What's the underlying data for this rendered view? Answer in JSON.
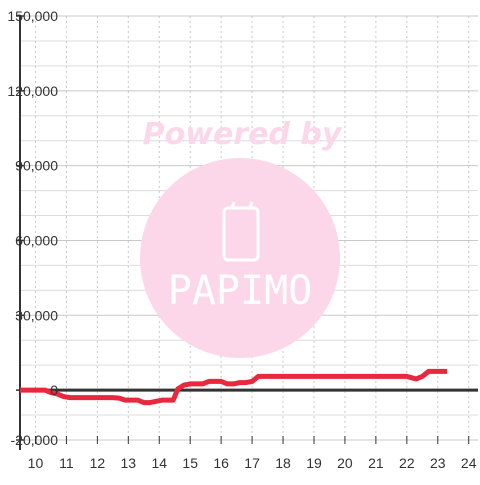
{
  "watermark": {
    "caption": "Powered by",
    "brand": "PAPIMO",
    "color": "#fcd7ea",
    "icon": "phone-icon"
  },
  "chart_data": {
    "type": "line",
    "title": "",
    "xlabel": "",
    "ylabel": "",
    "xlim": [
      9.5,
      24.3
    ],
    "ylim": [
      -20000,
      150000
    ],
    "x_ticks": [
      10,
      11,
      12,
      13,
      14,
      15,
      16,
      17,
      18,
      19,
      20,
      21,
      22,
      23,
      24
    ],
    "x_tick_labels": [
      "10",
      "11",
      "12",
      "13",
      "14",
      "15",
      "16",
      "17",
      "18",
      "19",
      "20",
      "21",
      "22",
      "23",
      "24"
    ],
    "y_ticks": [
      -20000,
      0,
      30000,
      60000,
      90000,
      120000,
      150000
    ],
    "y_tick_labels": [
      "-20,000",
      "0",
      "30,000",
      "60,000",
      "90,000",
      "120,000",
      "150,000"
    ],
    "grid": true,
    "legend": "none",
    "line_color": "#e8283c",
    "series": [
      {
        "x": [
          9.5,
          9.8,
          10.1,
          10.3,
          10.5,
          10.7,
          10.9,
          11.1,
          11.3,
          11.6,
          11.9,
          12.2,
          12.5,
          12.7,
          12.9,
          13.1,
          13.3,
          13.5,
          13.7,
          13.9,
          14.1,
          14.3,
          14.45,
          14.6,
          14.8,
          15.0,
          15.2,
          15.4,
          15.6,
          15.8,
          16.0,
          16.2,
          16.4,
          16.6,
          16.8,
          17.0,
          17.2,
          17.4,
          17.6,
          17.8,
          18.0,
          18.5,
          19.0,
          19.5,
          20.0,
          20.5,
          21.0,
          21.5,
          22.0,
          22.3,
          22.5,
          22.7,
          22.9,
          23.1,
          23.3
        ],
        "y": [
          0,
          0,
          0,
          0,
          -1000,
          -1500,
          -2500,
          -3000,
          -3000,
          -3000,
          -3000,
          -3000,
          -3000,
          -3200,
          -4000,
          -4000,
          -4000,
          -5000,
          -5000,
          -4500,
          -4000,
          -4000,
          -4000,
          500,
          2000,
          2500,
          2500,
          2500,
          3500,
          3500,
          3500,
          2500,
          2500,
          3000,
          3000,
          3500,
          5500,
          5500,
          5500,
          5500,
          5500,
          5500,
          5500,
          5500,
          5500,
          5500,
          5500,
          5500,
          5500,
          4500,
          5500,
          7500,
          7500,
          7500,
          7500
        ]
      }
    ]
  }
}
